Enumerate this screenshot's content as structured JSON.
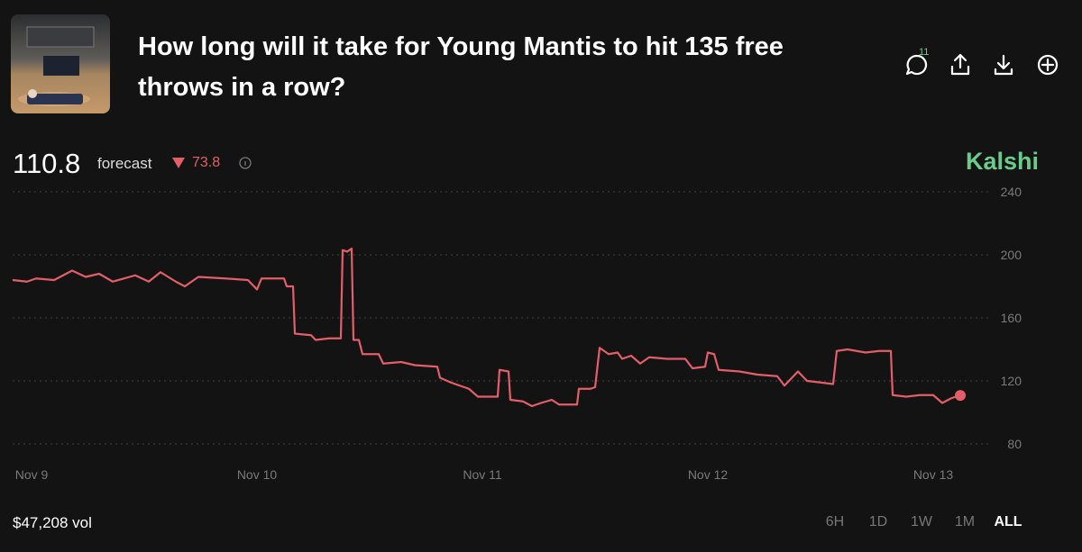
{
  "header": {
    "title": "How long will it take for Young Mantis to hit 135 free throws in a row?",
    "comment_count": "11"
  },
  "forecast": {
    "value": "110.8",
    "label": "forecast",
    "change": "73.8",
    "source": "Kalshi"
  },
  "chart_data": {
    "type": "line",
    "x": [
      -0.084,
      -0.02,
      0.02,
      0.1,
      0.18,
      0.24,
      0.3,
      0.36,
      0.46,
      0.52,
      0.572,
      0.64,
      0.68,
      0.74,
      0.86,
      0.96,
      1.0,
      1.02,
      1.12,
      1.132,
      1.16,
      1.168,
      1.24,
      1.26,
      1.32,
      1.372,
      1.38,
      1.4,
      1.42,
      1.428,
      1.452,
      1.468,
      1.54,
      1.56,
      1.64,
      1.7,
      1.8,
      1.812,
      1.86,
      1.9,
      1.94,
      1.98,
      2.012,
      2.068,
      2.076,
      2.116,
      2.124,
      2.18,
      2.22,
      2.26,
      2.308,
      2.34,
      2.42,
      2.428,
      2.48,
      2.5,
      2.52,
      2.56,
      2.6,
      2.62,
      2.66,
      2.7,
      2.74,
      2.82,
      2.9,
      2.932,
      2.988,
      3.0,
      3.028,
      3.048,
      3.14,
      3.22,
      3.308,
      3.34,
      3.4,
      3.44,
      3.5,
      3.556,
      3.572,
      3.62,
      3.7,
      3.76,
      3.812,
      3.82,
      3.88,
      3.94,
      4.0,
      4.04,
      4.08,
      4.12
    ],
    "series": [
      {
        "color": "#e25f6a",
        "values": [
          184,
          183,
          185,
          184,
          190,
          186,
          188,
          183,
          187,
          183,
          189,
          183,
          180,
          186,
          185,
          184,
          178,
          185,
          185,
          180,
          180,
          150,
          149,
          146,
          147,
          147,
          203,
          202,
          204,
          146,
          146,
          137,
          137,
          131,
          132,
          130,
          129,
          122,
          119,
          117,
          115,
          110,
          110,
          110,
          127,
          126,
          108,
          107,
          104,
          106,
          108,
          105,
          105,
          115,
          115,
          116,
          141,
          137,
          138,
          134,
          136,
          131,
          135,
          134,
          134,
          128,
          129,
          138,
          137,
          127,
          126,
          124,
          123,
          117,
          126,
          120,
          119,
          118,
          139,
          140,
          138,
          139,
          139,
          111,
          110,
          111,
          111,
          106,
          109,
          110.8
        ]
      }
    ],
    "xlim": [
      -0.084,
      4.26
    ],
    "xticks": [
      {
        "value": 0,
        "label": "Nov 9"
      },
      {
        "value": 1,
        "label": "Nov 10"
      },
      {
        "value": 2,
        "label": "Nov 11"
      },
      {
        "value": 3,
        "label": "Nov 12"
      },
      {
        "value": 4,
        "label": "Nov 13"
      }
    ],
    "ylim": [
      80,
      240
    ],
    "yticks": [
      80,
      120,
      160,
      200,
      240
    ],
    "grid": true
  },
  "footer": {
    "volume": "$47,208 vol",
    "ranges": [
      "6H",
      "1D",
      "1W",
      "1M",
      "ALL"
    ],
    "active_range": 4
  }
}
